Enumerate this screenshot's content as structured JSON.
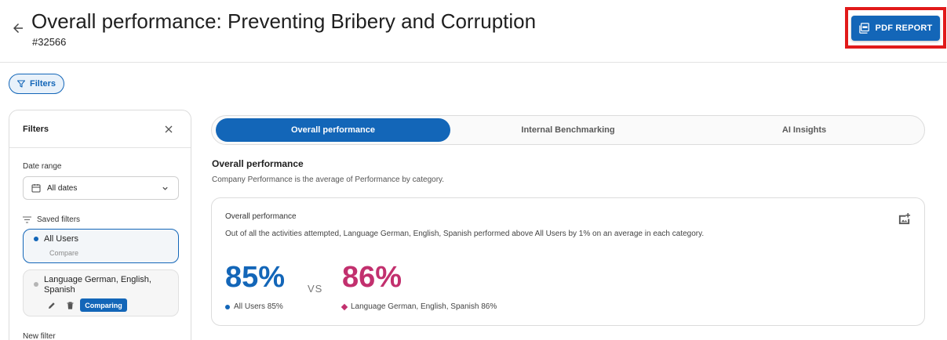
{
  "header": {
    "title": "Overall performance: Preventing Bribery and Corruption",
    "id": "#32566",
    "pdf_button_label": "PDF REPORT"
  },
  "filters_chip": {
    "label": "Filters"
  },
  "filters_panel": {
    "title": "Filters",
    "date_range_label": "Date range",
    "date_range_value": "All dates",
    "saved_filters_label": "Saved filters",
    "saved": [
      {
        "name": "All Users",
        "action": "Compare"
      },
      {
        "name": "Language German, English, Spanish",
        "status": "Comparing"
      }
    ],
    "new_filter_label": "New filter"
  },
  "tabs": [
    {
      "label": "Overall performance",
      "active": true
    },
    {
      "label": "Internal Benchmarking",
      "active": false
    },
    {
      "label": "AI Insights",
      "active": false
    }
  ],
  "section": {
    "title": "Overall performance",
    "subtitle": "Company Performance is the average of Performance by category."
  },
  "card": {
    "title": "Overall performance",
    "description": "Out of all the activities attempted, Language German, English, Spanish performed above All Users by 1% on an average in each category.",
    "score_a": "85%",
    "vs": "VS",
    "score_b": "86%",
    "legend_a": "All Users 85%",
    "legend_b": "Language German, English, Spanish 86%"
  },
  "colors": {
    "accent": "#1366b8",
    "compare": "#c2306e",
    "highlight": "#e11a1a"
  }
}
